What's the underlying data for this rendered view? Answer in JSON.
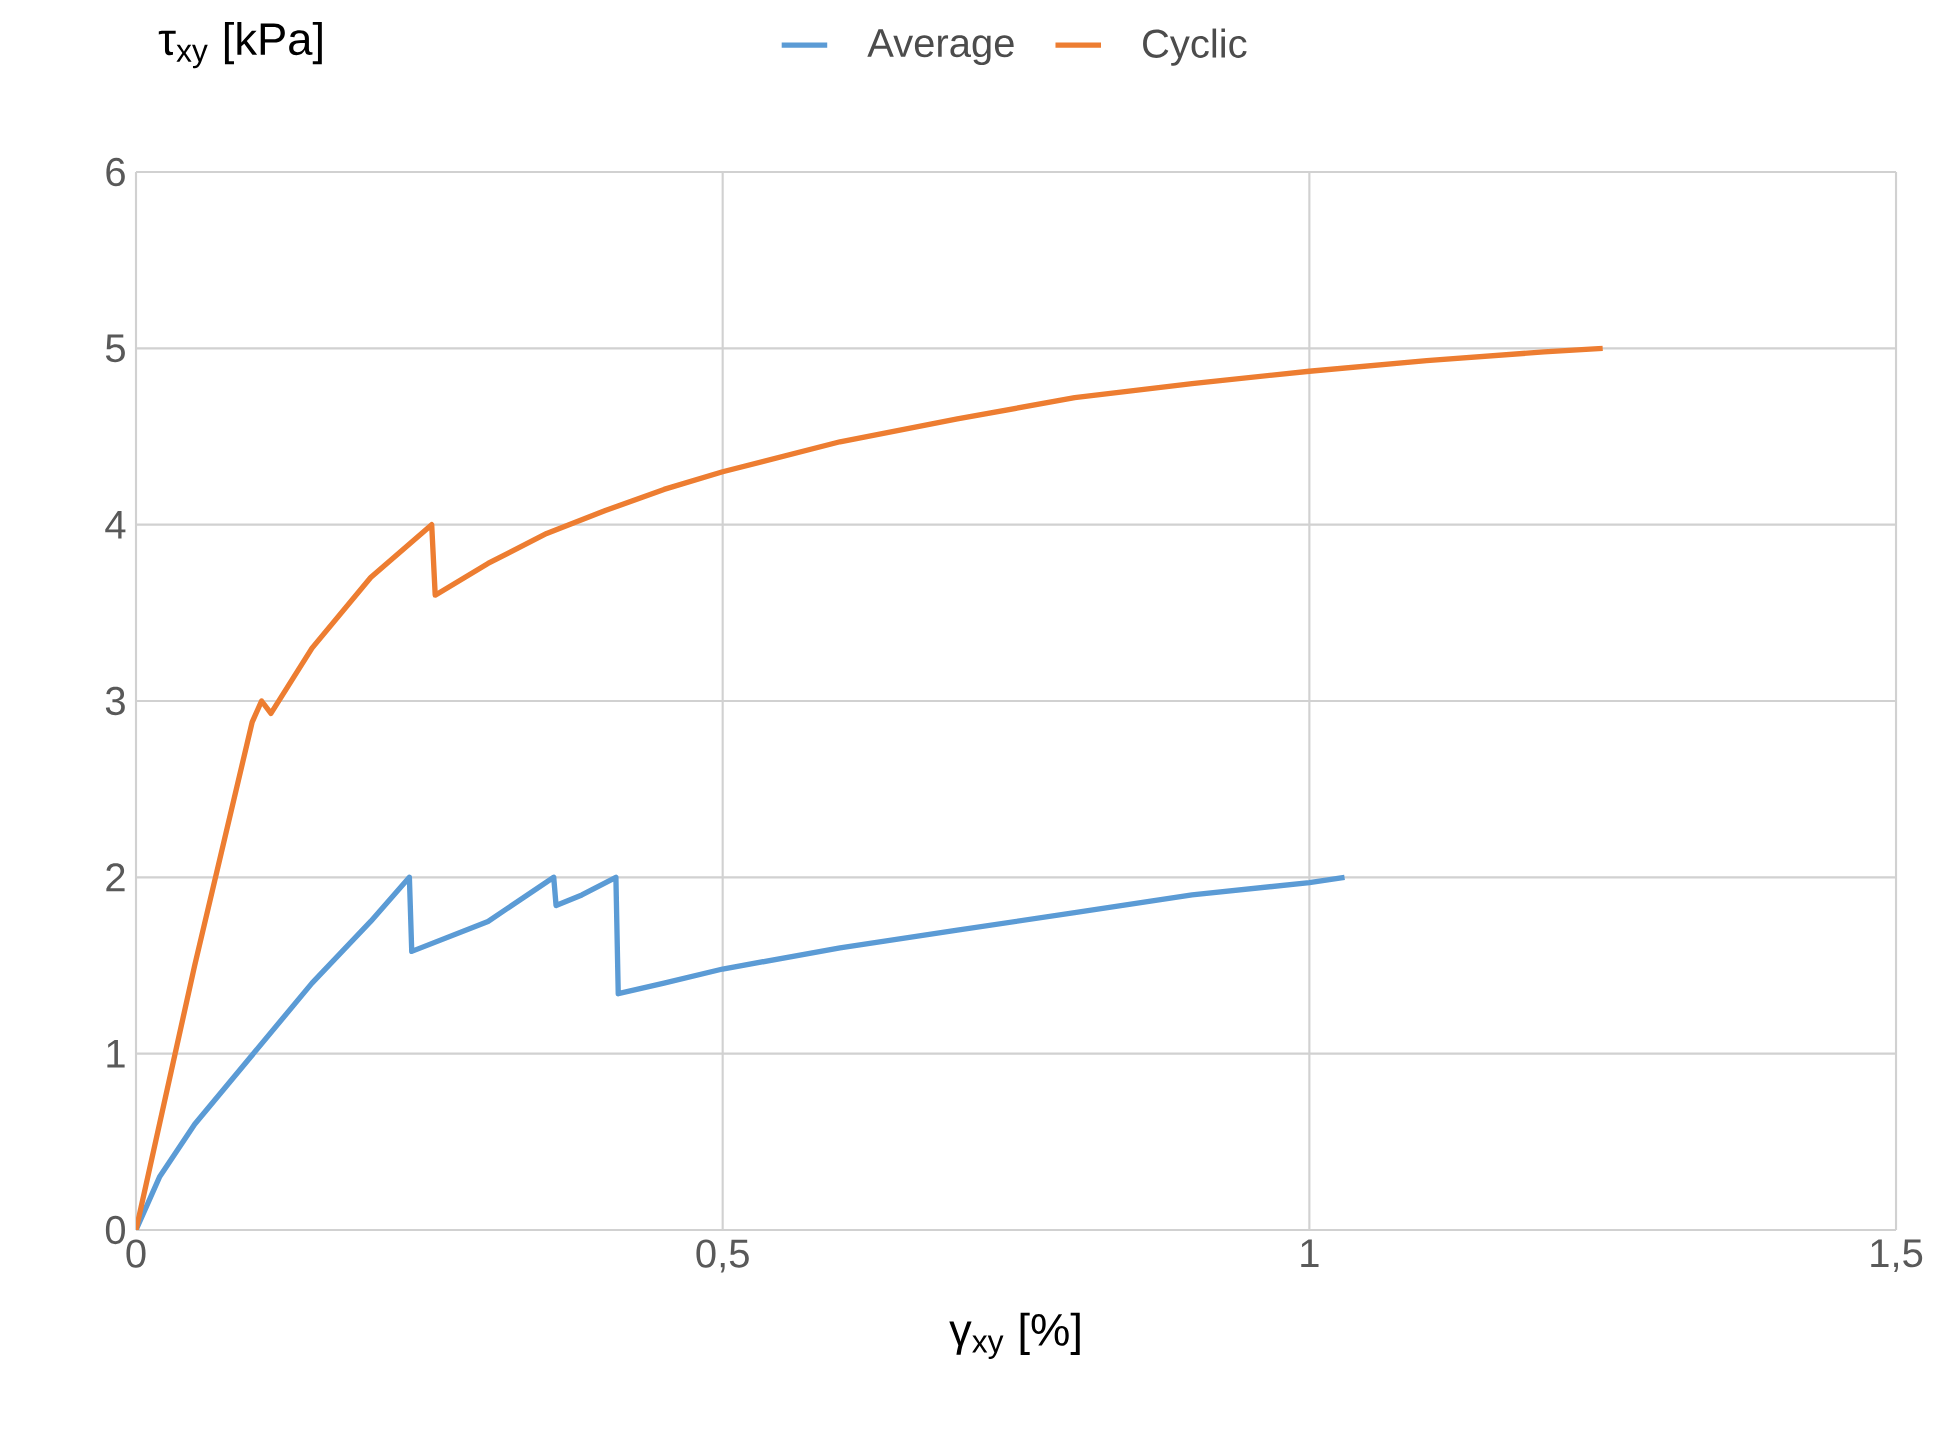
{
  "chart_data": {
    "type": "line",
    "xlabel": "γ$_{xy}$ [%]",
    "ylabel": "τ$_{xy}$ [kPa]",
    "xlim": [
      0,
      1.5
    ],
    "xticks": [
      0,
      {
        "value": 0.5,
        "label": "0,5"
      },
      1,
      {
        "value": 1.5,
        "label": "1,5"
      }
    ],
    "ylim": [
      0,
      6
    ],
    "yticks": [
      0,
      1,
      2,
      3,
      4,
      5,
      6
    ],
    "grid": true,
    "legend": "top",
    "marker": "none",
    "line_style": "solid",
    "series": [
      {
        "name": "Average",
        "color": "#5b9bd5",
        "x": [
          0,
          0.02,
          0.05,
          0.1,
          0.15,
          0.2,
          0.233,
          0.235,
          0.3,
          0.356,
          0.358,
          0.38,
          0.409,
          0.411,
          0.45,
          0.5,
          0.6,
          0.7,
          0.8,
          0.9,
          1.0,
          1.03
        ],
        "values": [
          0,
          0.3,
          0.6,
          1.0,
          1.4,
          1.75,
          2.0,
          1.58,
          1.75,
          2.0,
          1.84,
          1.9,
          2.0,
          1.34,
          1.4,
          1.48,
          1.6,
          1.7,
          1.8,
          1.9,
          1.97,
          2.0
        ]
      },
      {
        "name": "Cyclic",
        "color": "#ed7d31",
        "x": [
          0,
          0.05,
          0.099,
          0.107,
          0.115,
          0.15,
          0.2,
          0.252,
          0.255,
          0.3,
          0.35,
          0.4,
          0.45,
          0.5,
          0.6,
          0.7,
          0.8,
          0.9,
          1.0,
          1.1,
          1.2,
          1.25
        ],
        "values": [
          0,
          1.5,
          2.88,
          3.0,
          2.93,
          3.3,
          3.7,
          4.0,
          3.6,
          3.78,
          3.95,
          4.08,
          4.2,
          4.3,
          4.47,
          4.6,
          4.72,
          4.8,
          4.87,
          4.93,
          4.98,
          5.0
        ]
      }
    ]
  }
}
